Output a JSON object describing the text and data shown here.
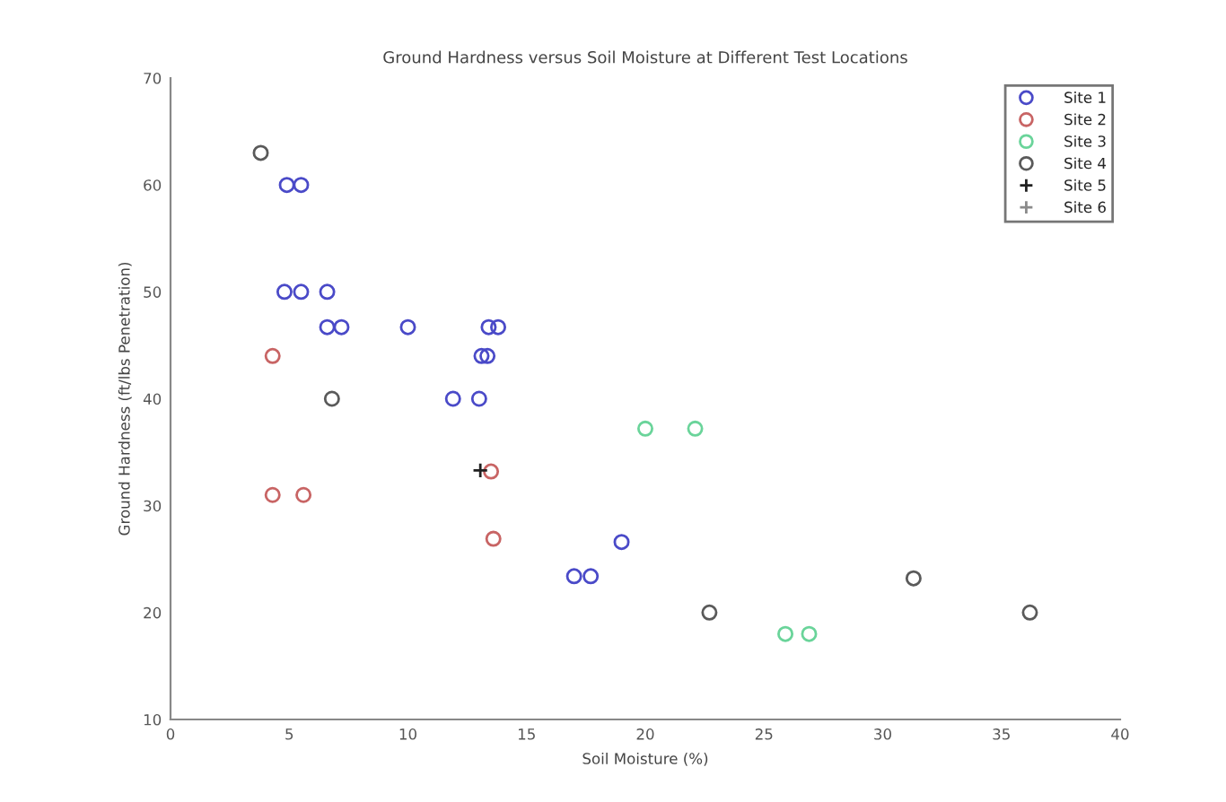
{
  "chart_data": {
    "type": "scatter",
    "title": "Ground Hardness versus Soil Moisture at Different Test Locations",
    "xlabel": "Soil Moisture (%)",
    "ylabel": "Ground Hardness (ft/lbs Penetration)",
    "xlim": [
      0,
      40
    ],
    "xticks": [
      0,
      5,
      10,
      15,
      20,
      25,
      30,
      35,
      40
    ],
    "ylim": [
      10,
      70
    ],
    "yticks": [
      10,
      20,
      30,
      40,
      50,
      60,
      70
    ],
    "grid": false,
    "legend": "top right",
    "series": [
      {
        "name": "Site 1",
        "color": "#4a4ac8",
        "marker": "circle",
        "x": [
          4.9,
          5.5,
          4.8,
          5.5,
          6.6,
          6.6,
          7.2,
          10.0,
          13.4,
          13.8,
          13.1,
          13.35,
          11.9,
          13.0,
          19.0,
          17.0,
          17.7
        ],
        "values": [
          60,
          60,
          50,
          50,
          50,
          46.7,
          46.7,
          46.7,
          46.7,
          46.7,
          44,
          44,
          40,
          40,
          26.6,
          23.4,
          23.4
        ]
      },
      {
        "name": "Site 2",
        "color": "#c86464",
        "marker": "circle",
        "x": [
          4.3,
          4.3,
          5.6,
          13.5,
          13.6
        ],
        "values": [
          44,
          31,
          31,
          33.2,
          26.9
        ]
      },
      {
        "name": "Site 3",
        "color": "#6ad49a",
        "marker": "circle",
        "x": [
          20.0,
          22.1,
          25.9,
          26.9
        ],
        "values": [
          37.2,
          37.2,
          18,
          18
        ]
      },
      {
        "name": "Site 4",
        "color": "#5a5a5a",
        "marker": "circle",
        "x": [
          3.8,
          6.8,
          22.7,
          31.3,
          36.2
        ],
        "values": [
          63,
          40,
          20,
          23.2,
          20
        ]
      },
      {
        "name": "Site 5",
        "color": "#202020",
        "marker": "cross",
        "x": [
          13.05
        ],
        "values": [
          33.3
        ]
      },
      {
        "name": "Site 6",
        "color": "#8a8a8a",
        "marker": "cross"
      }
    ]
  }
}
